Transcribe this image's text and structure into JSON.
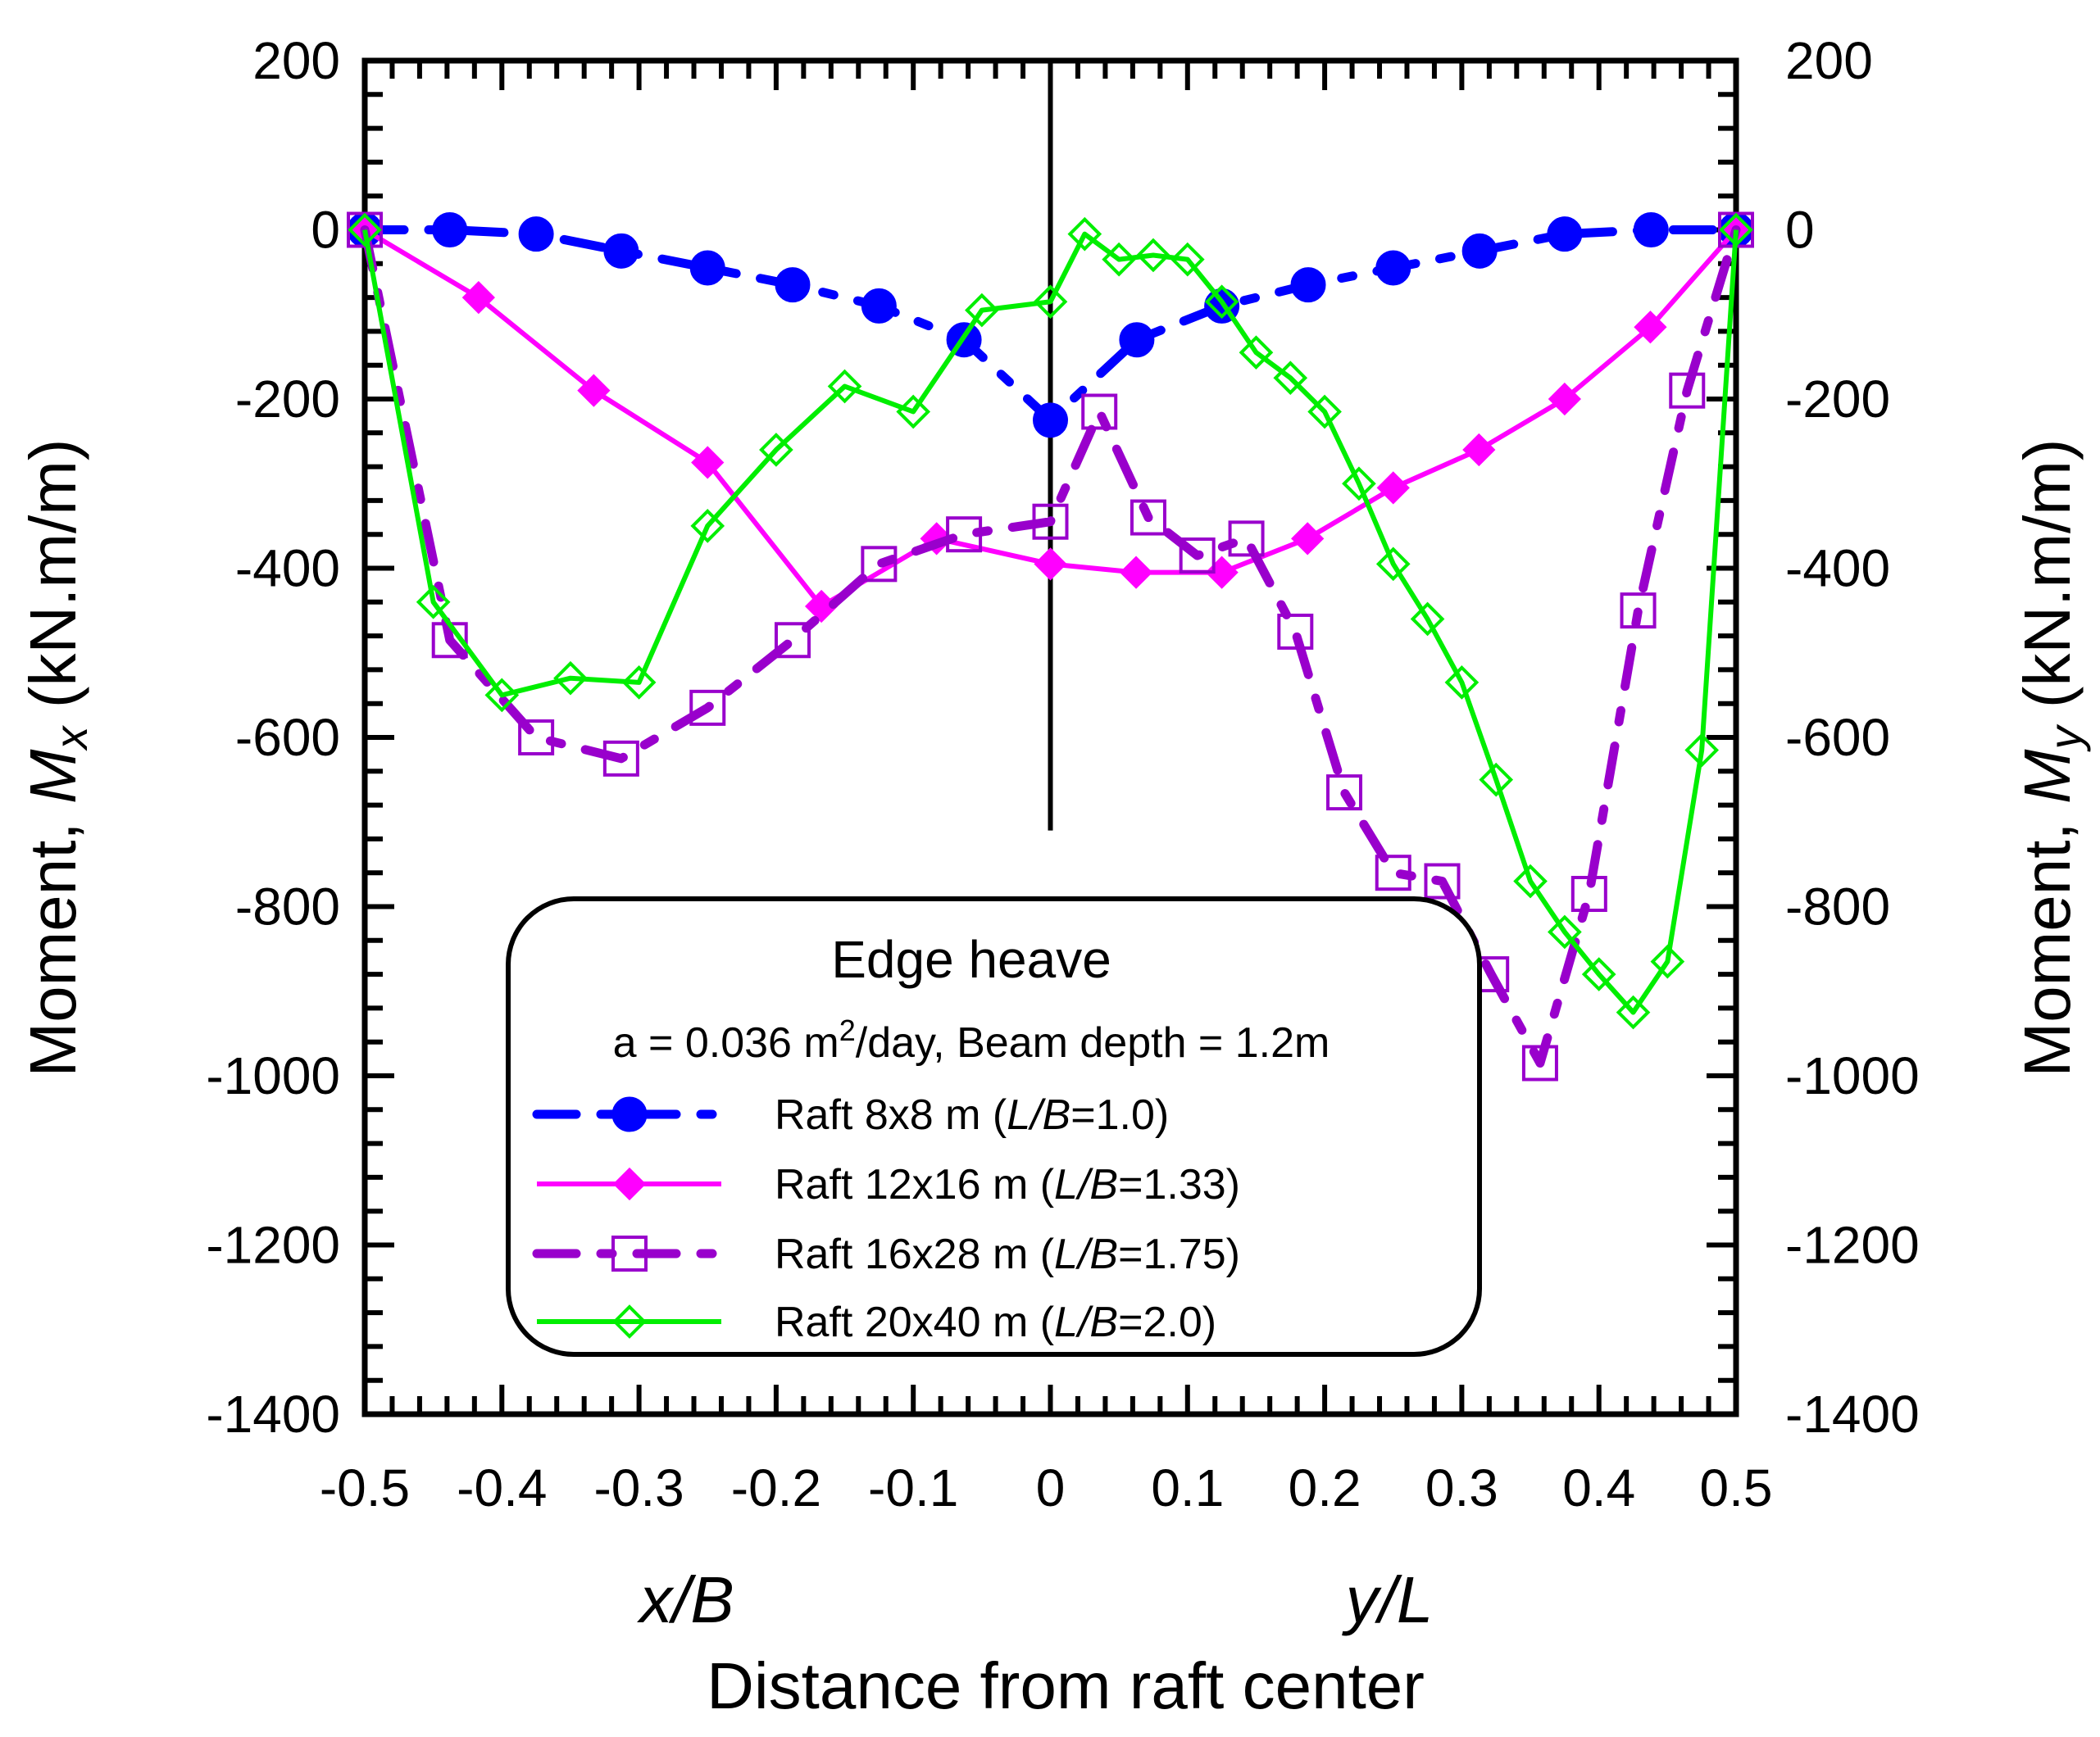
{
  "chart_data": {
    "type": "line",
    "x_axis": {
      "min": -0.5,
      "max": 0.5,
      "ticks": [
        "-0.5",
        "-0.4",
        "-0.3",
        "-0.2",
        "-0.1",
        "0",
        "0.1",
        "0.2",
        "0.3",
        "0.4",
        "0.5"
      ],
      "tick_values": [
        -0.5,
        -0.4,
        -0.3,
        -0.2,
        -0.1,
        0,
        0.1,
        0.2,
        0.3,
        0.4,
        0.5
      ],
      "label_left": "x/B",
      "label_right": "y/L",
      "title": "Distance from raft center"
    },
    "y_axis": {
      "min": -1400,
      "max": 200,
      "ticks": [
        "200",
        "0",
        "-200",
        "-400",
        "-600",
        "-800",
        "-1000",
        "-1200",
        "-1400"
      ],
      "tick_values": [
        200,
        0,
        -200,
        -400,
        -600,
        -800,
        -1000,
        -1200,
        -1400
      ],
      "left_title_main": "Moment, ",
      "left_title_var": "M",
      "left_title_sub": "x",
      "left_title_unit": " (kN.m/m)",
      "right_title_main": "Moment, ",
      "right_title_var": "M",
      "right_title_sub": "y",
      "right_title_unit": " (kN.m/m)"
    },
    "center_line": {
      "x": 0,
      "y_from": 200,
      "y_to": -710
    },
    "legend": {
      "title": "Edge heave",
      "subtitle_pre": "a = 0.036 m",
      "subtitle_sup": "2",
      "subtitle_post": "/day, Beam depth = 1.2m",
      "entries": [
        {
          "pre": "Raft 8x8 m (",
          "var": "L/B",
          "post": "=1.0)"
        },
        {
          "pre": "Raft 12x16 m (",
          "var": "L/B",
          "post": "=1.33)"
        },
        {
          "pre": "Raft 16x28 m (",
          "var": "L/B",
          "post": "=1.75)"
        },
        {
          "pre": "Raft 20x40 m (",
          "var": "L/B",
          "post": "=2.0)"
        }
      ]
    },
    "series": [
      {
        "name": "Raft 8x8 m (L/B=1.0)",
        "color": "#0000ff",
        "style": "dashed",
        "marker": "filled-circle",
        "x": [
          -0.5,
          -0.438,
          -0.375,
          -0.313,
          -0.25,
          -0.188,
          -0.125,
          -0.063,
          0,
          0.063,
          0.125,
          0.188,
          0.25,
          0.313,
          0.375,
          0.438,
          0.5
        ],
        "y": [
          0,
          0,
          -5,
          -25,
          -45,
          -65,
          -90,
          -130,
          -225,
          -130,
          -90,
          -65,
          -45,
          -25,
          -5,
          0,
          0
        ]
      },
      {
        "name": "Raft 12x16 m (L/B=1.33)",
        "color": "#ff00ff",
        "style": "solid",
        "marker": "filled-diamond",
        "x": [
          -0.5,
          -0.417,
          -0.333,
          -0.25,
          -0.167,
          -0.083,
          0,
          0.0625,
          0.125,
          0.1875,
          0.25,
          0.3125,
          0.375,
          0.4375,
          0.5
        ],
        "y": [
          0,
          -80,
          -190,
          -275,
          -445,
          -365,
          -395,
          -405,
          -405,
          -365,
          -305,
          -260,
          -200,
          -115,
          0
        ]
      },
      {
        "name": "Raft 16x28 m (L/B=1.75)",
        "color": "#9900cc",
        "style": "dashed",
        "marker": "open-square",
        "x": [
          -0.5,
          -0.438,
          -0.375,
          -0.313,
          -0.25,
          -0.188,
          -0.125,
          -0.063,
          0,
          0.0357,
          0.0714,
          0.1071,
          0.1429,
          0.1786,
          0.2143,
          0.25,
          0.2857,
          0.3214,
          0.3571,
          0.3929,
          0.4286,
          0.4643,
          0.5
        ],
        "y": [
          0,
          -485,
          -600,
          -625,
          -565,
          -485,
          -395,
          -360,
          -345,
          -215,
          -340,
          -385,
          -365,
          -475,
          -665,
          -760,
          -770,
          -880,
          -985,
          -785,
          -450,
          -190,
          0
        ]
      },
      {
        "name": "Raft 20x40 m (L/B=2.0)",
        "color": "#00ee00",
        "style": "solid",
        "marker": "open-diamond",
        "x": [
          -0.5,
          -0.45,
          -0.4,
          -0.35,
          -0.3,
          -0.25,
          -0.2,
          -0.15,
          -0.1,
          -0.05,
          0,
          0.025,
          0.05,
          0.075,
          0.1,
          0.125,
          0.15,
          0.175,
          0.2,
          0.225,
          0.25,
          0.275,
          0.3,
          0.325,
          0.35,
          0.375,
          0.4,
          0.425,
          0.45,
          0.475,
          0.5
        ],
        "y": [
          0,
          -440,
          -550,
          -530,
          -535,
          -350,
          -260,
          -185,
          -215,
          -95,
          -85,
          -5,
          -35,
          -30,
          -35,
          -85,
          -145,
          -175,
          -215,
          -300,
          -395,
          -460,
          -535,
          -650,
          -770,
          -830,
          -880,
          -925,
          -865,
          -615,
          0
        ]
      }
    ]
  }
}
